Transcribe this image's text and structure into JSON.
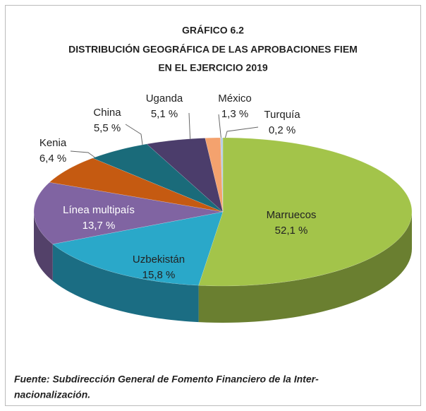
{
  "chart_data": {
    "type": "pie",
    "title": [
      "GRÁFICO 6.2",
      "DISTRIBUCIÓN GEOGRÁFICA DE LAS APROBACIONES FIEM",
      "EN EL EJERCICIO 2019"
    ],
    "categories": [
      "Marruecos",
      "Uzbekistán",
      "Línea multipaís",
      "Kenia",
      "China",
      "Uganda",
      "México",
      "Turquía"
    ],
    "values": [
      52.1,
      15.8,
      13.7,
      6.4,
      5.5,
      5.1,
      1.3,
      0.2
    ],
    "value_labels": [
      "52,1 %",
      "15,8 %",
      "13,7 %",
      "6,4 %",
      "5,5 %",
      "5,1 %",
      "1,3 %",
      "0,2 %"
    ],
    "colors": [
      "#a3c44a",
      "#2aa8c9",
      "#8064a2",
      "#c55a11",
      "#1a6b7a",
      "#4b3d6b",
      "#f4a26e",
      "#b7cfe6"
    ],
    "source": [
      "Fuente: Subdirección General de Fomento Financiero de la Inter-",
      "nacionalización."
    ]
  }
}
